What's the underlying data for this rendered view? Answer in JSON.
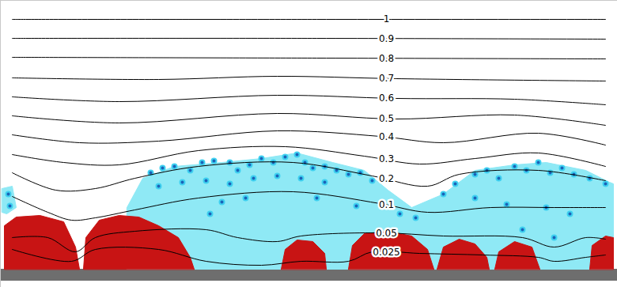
{
  "chart_data": {
    "type": "contour",
    "tick_labels": false,
    "xlim": [
      0,
      780
    ],
    "ylim": [
      0,
      363
    ],
    "substrate": {
      "color": "#6e6e6e",
      "y": [
        8,
        23
      ]
    },
    "regions": [
      {
        "color": "#8fe9f5",
        "x": [
          160,
          180,
          220,
          280,
          330,
          375,
          420,
          460,
          490,
          520,
          560,
          600,
          650,
          690,
          740,
          770,
          775,
          775,
          160
        ],
        "y": [
          101,
          138,
          153,
          158,
          163,
          170,
          158,
          148,
          123,
          101,
          118,
          148,
          155,
          158,
          148,
          133,
          131,
          23,
          23
        ]
      },
      {
        "color": "#8fe9f5",
        "x": [
          2,
          15,
          20,
          8,
          2
        ],
        "y": [
          125,
          128,
          101,
          93,
          95
        ]
      },
      {
        "color": "#c81414",
        "x": [
          5,
          5,
          20,
          50,
          80,
          95,
          100
        ],
        "y": [
          23,
          78,
          89,
          91,
          83,
          51,
          23
        ]
      },
      {
        "color": "#c81414",
        "x": [
          105,
          108,
          125,
          150,
          175,
          200,
          225,
          240,
          245
        ],
        "y": [
          23,
          63,
          85,
          91,
          89,
          78,
          63,
          38,
          23
        ]
      },
      {
        "color": "#c81414",
        "x": [
          355,
          360,
          375,
          395,
          410,
          412
        ],
        "y": [
          23,
          48,
          60,
          58,
          43,
          23
        ]
      },
      {
        "color": "#c81414",
        "x": [
          440,
          445,
          460,
          490,
          520,
          540,
          548
        ],
        "y": [
          23,
          53,
          68,
          71,
          65,
          48,
          23
        ]
      },
      {
        "color": "#c81414",
        "x": [
          552,
          560,
          580,
          600,
          615,
          618
        ],
        "y": [
          23,
          51,
          61,
          55,
          38,
          23
        ]
      },
      {
        "color": "#c81414",
        "x": [
          625,
          630,
          650,
          672,
          682
        ],
        "y": [
          23,
          45,
          58,
          51,
          23
        ]
      },
      {
        "color": "#c81414",
        "x": [
          745,
          748,
          765,
          775,
          775
        ],
        "y": [
          23,
          53,
          65,
          63,
          23
        ]
      }
    ],
    "particles": {
      "color": "#1a63b8",
      "x": [
        190,
        205,
        220,
        240,
        255,
        270,
        290,
        300,
        315,
        330,
        345,
        360,
        375,
        385,
        395,
        410,
        425,
        440,
        455,
        470,
        200,
        230,
        260,
        290,
        320,
        350,
        380,
        410,
        265,
        280,
        310,
        400,
        450,
        505,
        525,
        560,
        575,
        600,
        615,
        630,
        650,
        665,
        680,
        695,
        710,
        725,
        745,
        765,
        600,
        640,
        690,
        720,
        700,
        660,
        10,
        12
      ],
      "y": [
        145,
        151,
        153,
        148,
        158,
        160,
        158,
        148,
        155,
        163,
        158,
        165,
        168,
        158,
        151,
        153,
        148,
        143,
        145,
        135,
        128,
        133,
        135,
        131,
        138,
        141,
        138,
        133,
        93,
        108,
        113,
        113,
        103,
        93,
        88,
        118,
        131,
        143,
        148,
        138,
        153,
        148,
        158,
        145,
        151,
        143,
        138,
        131,
        113,
        105,
        101,
        93,
        63,
        73,
        118,
        103
      ]
    },
    "contours": [
      {
        "level": 1,
        "x": [
          15,
          400,
          765
        ],
        "y": [
          339,
          339,
          339
        ]
      },
      {
        "level": 0.9,
        "x": [
          15,
          400,
          765
        ],
        "y": [
          315,
          315,
          314
        ]
      },
      {
        "level": 0.8,
        "x": [
          15,
          400,
          765
        ],
        "y": [
          291,
          290,
          289
        ]
      },
      {
        "level": 0.7,
        "x": [
          15,
          200,
          350,
          500,
          765
        ],
        "y": [
          265,
          263,
          267,
          264,
          261
        ]
      },
      {
        "level": 0.6,
        "x": [
          15,
          150,
          350,
          500,
          650,
          765
        ],
        "y": [
          241,
          235,
          243,
          239,
          238,
          231
        ]
      },
      {
        "level": 0.5,
        "x": [
          15,
          150,
          350,
          500,
          650,
          765
        ],
        "y": [
          217,
          208,
          220,
          213,
          218,
          205
        ]
      },
      {
        "level": 0.4,
        "x": [
          15,
          100,
          200,
          350,
          480,
          560,
          680,
          765
        ],
        "y": [
          193,
          183,
          185,
          198,
          191,
          183,
          195,
          180
        ]
      },
      {
        "level": 0.3,
        "x": [
          15,
          80,
          150,
          250,
          360,
          460,
          530,
          600,
          680,
          765
        ],
        "y": [
          168,
          158,
          155,
          173,
          178,
          166,
          156,
          163,
          170,
          153
        ]
      },
      {
        "level": 0.2,
        "x": [
          15,
          70,
          120,
          170,
          250,
          370,
          470,
          540,
          580,
          680,
          765
        ],
        "y": [
          145,
          123,
          125,
          138,
          153,
          158,
          141,
          128,
          143,
          148,
          135
        ]
      },
      {
        "level": 0.1,
        "x": [
          15,
          60,
          90,
          120,
          170,
          250,
          370,
          480,
          540,
          620,
          700,
          765
        ],
        "y": [
          115,
          95,
          85,
          88,
          98,
          113,
          121,
          106,
          95,
          101,
          101,
          101
        ]
      },
      {
        "level": 0.05,
        "x": [
          15,
          60,
          95,
          120,
          170,
          260,
          300,
          350,
          380,
          480,
          560,
          660,
          700,
          740,
          765
        ],
        "y": [
          63,
          63,
          45,
          63,
          71,
          73,
          63,
          58,
          65,
          69,
          65,
          63,
          51,
          63,
          61
        ]
      },
      {
        "level": 0.025,
        "x": [
          15,
          90,
          120,
          200,
          260,
          330,
          380,
          440,
          470,
          530,
          610,
          680,
          700,
          740,
          765
        ],
        "y": [
          48,
          33,
          48,
          48,
          33,
          28,
          33,
          33,
          45,
          43,
          41,
          38,
          33,
          38,
          41
        ]
      }
    ]
  }
}
